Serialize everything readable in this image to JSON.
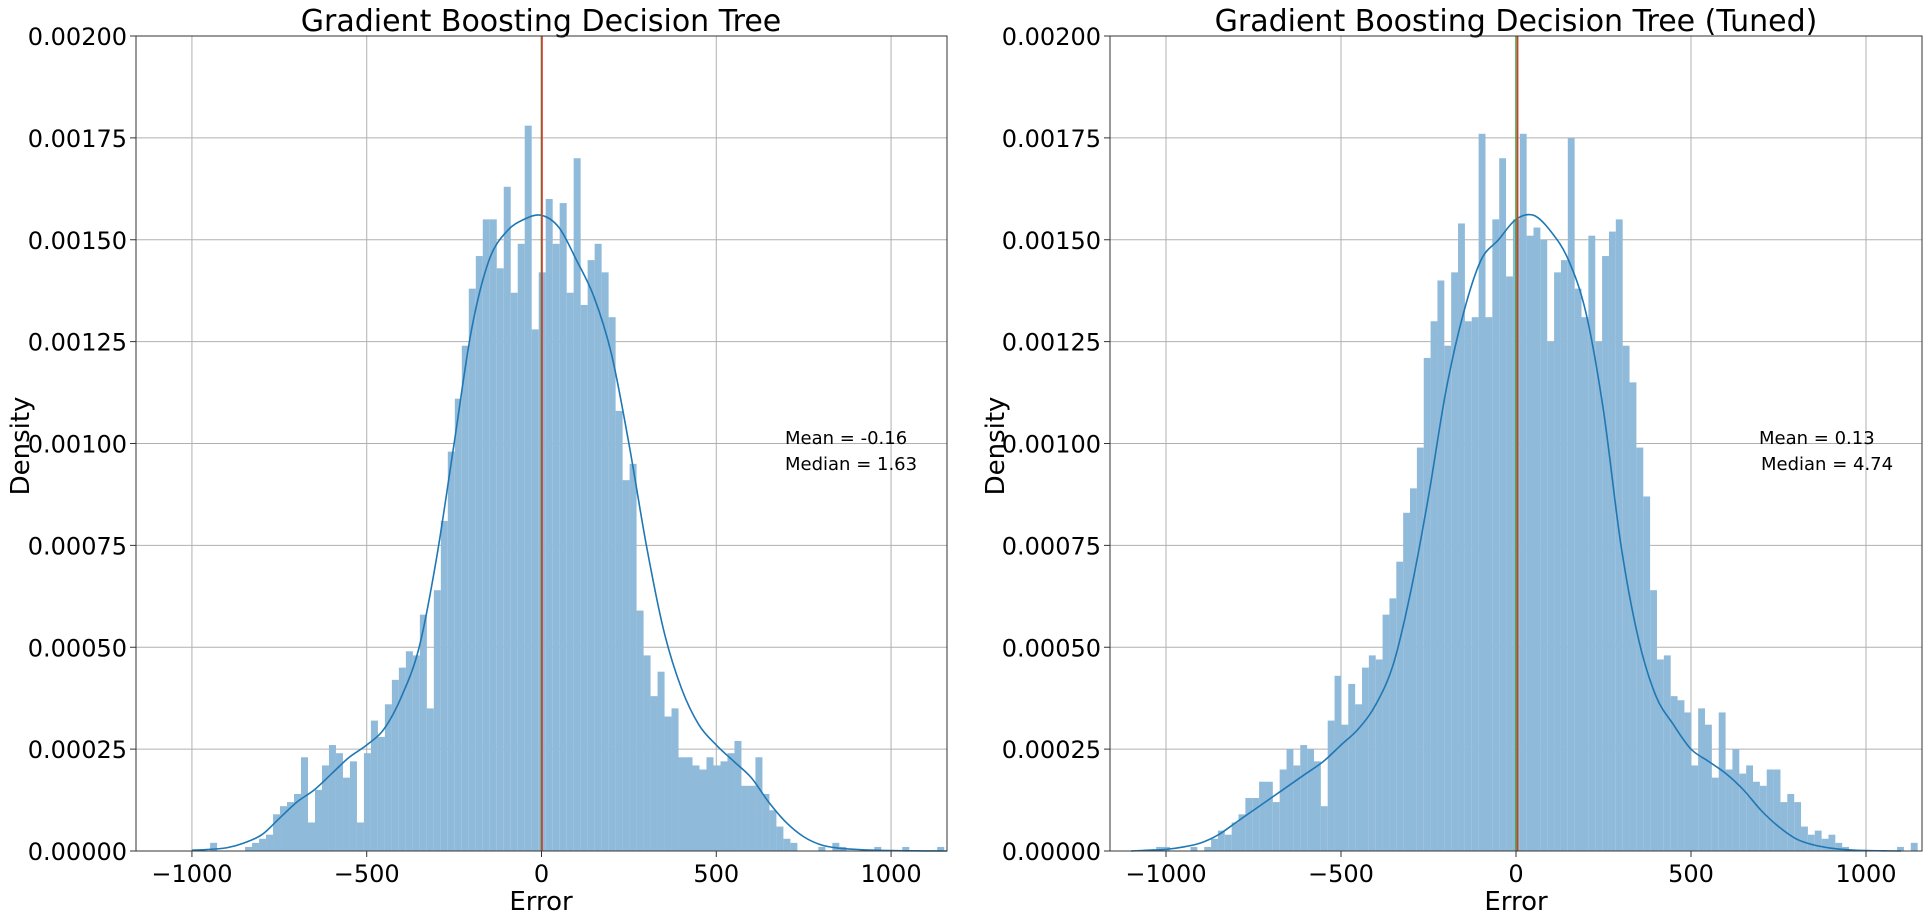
{
  "chart_data": [
    {
      "type": "histogram",
      "title": "Gradient Boosting Decision Tree",
      "xlabel": "Error",
      "ylabel": "Density",
      "xlim": [
        -1160,
        1160
      ],
      "ylim": [
        0,
        0.002
      ],
      "xticks": [
        -1000,
        -500,
        0,
        500,
        1000
      ],
      "xtick_labels": [
        "−1000",
        "−500",
        "0",
        "500",
        "1000"
      ],
      "yticks": [
        0,
        0.00025,
        0.0005,
        0.00075,
        0.001,
        0.00125,
        0.0015,
        0.00175,
        0.002
      ],
      "ytick_labels": [
        "0.00000",
        "0.00025",
        "0.00050",
        "0.00075",
        "0.00100",
        "0.00125",
        "0.00150",
        "0.00175",
        "0.00200"
      ],
      "grid": true,
      "bin_start": -948,
      "bin_width": 20,
      "densities": [
        2e-05,
        0.0,
        0.0,
        0.0,
        0.0,
        1e-05,
        2e-05,
        3e-05,
        4e-05,
        9e-05,
        0.00011,
        0.00012,
        0.00014,
        0.00023,
        7e-05,
        0.00015,
        0.00021,
        0.00026,
        0.00024,
        0.00018,
        0.00022,
        7e-05,
        0.00024,
        0.00032,
        0.00028,
        0.00036,
        0.00042,
        0.00045,
        0.00049,
        0.00048,
        0.00058,
        0.00035,
        0.00064,
        0.00081,
        0.00098,
        0.00111,
        0.00124,
        0.00138,
        0.00146,
        0.00155,
        0.00155,
        0.00143,
        0.00163,
        0.00137,
        0.00149,
        0.00178,
        0.00128,
        0.00142,
        0.0016,
        0.00149,
        0.00159,
        0.00137,
        0.0017,
        0.00134,
        0.00145,
        0.00149,
        0.00142,
        0.00131,
        0.00108,
        0.00091,
        0.00095,
        0.00059,
        0.00048,
        0.00038,
        0.00044,
        0.00033,
        0.00035,
        0.00023,
        0.00023,
        0.00021,
        0.0002,
        0.00023,
        0.00021,
        0.00022,
        0.00024,
        0.00027,
        0.00016,
        0.00016,
        0.00023,
        0.00014,
        0.0001,
        6e-05,
        3e-05,
        2e-05,
        0.0,
        0.0,
        0.0,
        1e-05,
        0.0,
        2e-05,
        1e-05,
        0.0,
        0.0,
        0.0,
        0.0,
        1e-05,
        0.0,
        0.0,
        0.0,
        1e-05,
        0.0,
        0.0,
        0.0,
        0.0,
        1e-05
      ],
      "kde": {
        "x": [
          -1000,
          -950,
          -900,
          -850,
          -800,
          -750,
          -700,
          -650,
          -600,
          -550,
          -500,
          -450,
          -400,
          -350,
          -300,
          -250,
          -200,
          -150,
          -100,
          -50,
          0,
          50,
          100,
          150,
          200,
          250,
          300,
          350,
          400,
          450,
          500,
          550,
          600,
          650,
          700,
          750,
          800,
          850,
          900,
          950,
          1000,
          1050,
          1100,
          1160
        ],
        "y": [
          2e-06,
          4e-06,
          8e-06,
          2e-05,
          4e-05,
          8e-05,
          0.00012,
          0.00015,
          0.00019,
          0.00023,
          0.00026,
          0.0003,
          0.00038,
          0.0005,
          0.00072,
          0.001,
          0.00128,
          0.00145,
          0.00152,
          0.00155,
          0.00156,
          0.00153,
          0.00145,
          0.00136,
          0.00122,
          0.001,
          0.00075,
          0.00054,
          0.0004,
          0.00031,
          0.00026,
          0.00022,
          0.00018,
          0.00012,
          7e-05,
          3.5e-05,
          1.5e-05,
          7e-06,
          4e-06,
          2e-06,
          1e-06,
          5e-07,
          2e-07,
          0.0
        ]
      },
      "mean_line": -0.16,
      "median_line": 1.63,
      "annotation": {
        "mean": "Mean = -0.16",
        "median": "Median = 1.63"
      },
      "colors": {
        "bars": "#8fbad9",
        "kde": "#1f77b4",
        "mean": "#2ca02c",
        "median": "#e8322e",
        "grid": "#b0b0b0"
      }
    },
    {
      "type": "histogram",
      "title": "Gradient Boosting Decision Tree (Tuned)",
      "xlabel": "Error",
      "ylabel": "Density",
      "xlim": [
        -1160,
        1160
      ],
      "ylim": [
        0,
        0.002
      ],
      "xticks": [
        -1000,
        -500,
        0,
        500,
        1000
      ],
      "xtick_labels": [
        "−1000",
        "−500",
        "0",
        "500",
        "1000"
      ],
      "yticks": [
        0,
        0.00025,
        0.0005,
        0.00075,
        0.001,
        0.00125,
        0.0015,
        0.00175,
        0.002
      ],
      "ytick_labels": [
        "0.00000",
        "0.00025",
        "0.00050",
        "0.00075",
        "0.00100",
        "0.00125",
        "0.00150",
        "0.00175",
        "0.00200"
      ],
      "grid": true,
      "bin_start": -1028,
      "bin_width": 19.6,
      "densities": [
        1e-05,
        1e-05,
        0.0,
        0.0,
        0.0,
        1e-05,
        0.0,
        1e-05,
        3e-05,
        5e-05,
        4e-05,
        7e-05,
        9e-05,
        0.00013,
        0.00013,
        0.00017,
        0.00017,
        0.00012,
        0.0002,
        0.00025,
        0.00021,
        0.00026,
        0.00025,
        0.00022,
        0.00011,
        0.00032,
        0.00043,
        0.00031,
        0.00041,
        0.00036,
        0.00045,
        0.00048,
        0.00047,
        0.00058,
        0.00062,
        0.00071,
        0.00083,
        0.00089,
        0.00099,
        0.00121,
        0.0013,
        0.0014,
        0.00124,
        0.00142,
        0.00154,
        0.0013,
        0.00131,
        0.00176,
        0.00131,
        0.00155,
        0.0017,
        0.00141,
        0.00155,
        0.00176,
        0.00151,
        0.00153,
        0.0015,
        0.00125,
        0.00142,
        0.00145,
        0.00175,
        0.00138,
        0.00131,
        0.00151,
        0.00125,
        0.00146,
        0.00152,
        0.00155,
        0.00124,
        0.00115,
        0.00099,
        0.00087,
        0.00064,
        0.00047,
        0.00048,
        0.00038,
        0.00037,
        0.00034,
        0.00021,
        0.00035,
        0.00031,
        0.00018,
        0.00034,
        0.0002,
        0.00025,
        0.00019,
        0.00021,
        0.00017,
        0.00016,
        0.0002,
        0.0002,
        0.00012,
        0.00014,
        0.00012,
        6e-05,
        4e-05,
        5e-05,
        3e-05,
        4e-05,
        2e-05,
        1e-05,
        0.0,
        0.0,
        0.0,
        0.0,
        0.0,
        0.0,
        0.0,
        1e-05,
        0.0,
        2e-05
      ],
      "kde": {
        "x": [
          -1100,
          -1050,
          -1000,
          -950,
          -900,
          -850,
          -800,
          -750,
          -700,
          -650,
          -600,
          -550,
          -500,
          -450,
          -400,
          -350,
          -300,
          -250,
          -200,
          -150,
          -100,
          -50,
          0,
          50,
          100,
          150,
          200,
          250,
          300,
          350,
          400,
          450,
          500,
          550,
          600,
          650,
          700,
          750,
          800,
          850,
          900,
          950,
          1000,
          1050,
          1100
        ],
        "y": [
          0.0,
          2e-06,
          4e-06,
          1e-05,
          2e-05,
          4e-05,
          7e-05,
          0.0001,
          0.00013,
          0.00016,
          0.00019,
          0.00022,
          0.00026,
          0.0003,
          0.00036,
          0.00046,
          0.00064,
          0.00087,
          0.00113,
          0.00132,
          0.00145,
          0.0015,
          0.00155,
          0.00156,
          0.00152,
          0.00145,
          0.00132,
          0.00108,
          0.00075,
          0.00052,
          0.00038,
          0.00031,
          0.00025,
          0.00022,
          0.00019,
          0.00015,
          0.0001,
          6e-05,
          3e-05,
          1.5e-05,
          7e-06,
          3e-06,
          1e-06,
          5e-07,
          0.0
        ]
      },
      "mean_line": 0.13,
      "median_line": 4.74,
      "annotation": {
        "mean": "Mean = 0.13",
        "median": "Median = 4.74"
      },
      "colors": {
        "bars": "#8fbad9",
        "kde": "#1f77b4",
        "mean": "#2ca02c",
        "median": "#e8322e",
        "grid": "#b0b0b0"
      }
    }
  ]
}
